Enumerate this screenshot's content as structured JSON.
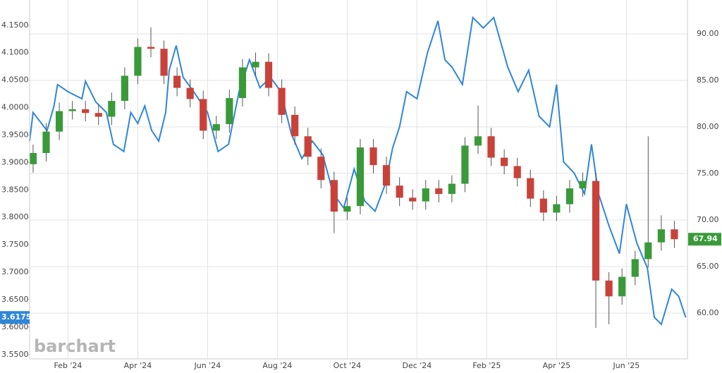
{
  "chart_data": {
    "type": "combo",
    "watermark": "barchart",
    "grid": true,
    "xlim": [
      -0.1,
      18.75
    ],
    "xticks": [
      {
        "value": 1,
        "label": "Feb '24"
      },
      {
        "value": 3,
        "label": "Apr '24"
      },
      {
        "value": 5,
        "label": "Jun '24"
      },
      {
        "value": 7,
        "label": "Aug '24"
      },
      {
        "value": 9,
        "label": "Oct '24"
      },
      {
        "value": 11,
        "label": "Dec '24"
      },
      {
        "value": 13,
        "label": "Feb '25"
      },
      {
        "value": 15,
        "label": "Apr '25"
      },
      {
        "value": 17,
        "label": "Jun '25"
      }
    ],
    "ylim": [
      3.542,
      4.196
    ],
    "yticks": [
      {
        "value": 4.15,
        "label": "4.1500"
      },
      {
        "value": 4.1,
        "label": "4.1000"
      },
      {
        "value": 4.05,
        "label": "4.0500"
      },
      {
        "value": 4.0,
        "label": "4.0000"
      },
      {
        "value": 3.95,
        "label": "3.9500"
      },
      {
        "value": 3.9,
        "label": "3.9000"
      },
      {
        "value": 3.85,
        "label": "3.8500"
      },
      {
        "value": 3.8,
        "label": "3.8000"
      },
      {
        "value": 3.75,
        "label": "3.7500"
      },
      {
        "value": 3.7,
        "label": "3.7000"
      },
      {
        "value": 3.65,
        "label": "3.6500"
      },
      {
        "value": 3.6,
        "label": "3.6000"
      },
      {
        "value": 3.55,
        "label": "3.5500"
      }
    ],
    "y2lim": [
      55.08,
      93.64
    ],
    "y2ticks": [
      {
        "value": 90,
        "label": "90.00"
      },
      {
        "value": 85,
        "label": "85.00"
      },
      {
        "value": 80,
        "label": "80.00"
      },
      {
        "value": 75,
        "label": "75.00"
      },
      {
        "value": 70,
        "label": "70.00"
      },
      {
        "value": 65,
        "label": "65.00"
      },
      {
        "value": 60,
        "label": "60.00"
      }
    ],
    "series": [
      {
        "type": "line",
        "color": "#2f86d8",
        "x": [
          -0.1,
          0,
          0.4,
          0.6,
          0.7,
          1.0,
          1.4,
          1.5,
          1.8,
          2.1,
          2.3,
          2.6,
          2.8,
          3.0,
          3.2,
          3.4,
          3.6,
          3.8,
          3.9,
          4.1,
          4.3,
          4.6,
          5.0,
          5.3,
          5.6,
          5.9,
          6.2,
          6.5,
          6.8,
          7.1,
          7.4,
          7.7,
          8.0,
          8.3,
          8.6,
          8.9,
          9.2,
          9.5,
          9.8,
          10.1,
          10.3,
          10.5,
          10.7,
          11.0,
          11.3,
          11.6,
          11.8,
          12.0,
          12.3,
          12.6,
          12.9,
          13.2,
          13.6,
          13.9,
          14.2,
          14.5,
          14.8,
          15.0,
          15.2,
          15.5,
          15.8,
          16.0,
          16.2,
          16.5,
          16.8,
          17.0,
          17.3,
          17.6,
          17.8,
          18.0,
          18.3,
          18.5,
          18.7
        ],
        "values": [
          3.939,
          3.991,
          3.958,
          4.003,
          4.042,
          4.029,
          4.016,
          4.048,
          4.01,
          3.991,
          3.933,
          3.92,
          3.991,
          3.971,
          4.003,
          3.958,
          3.939,
          3.991,
          4.068,
          4.113,
          4.055,
          4.029,
          3.991,
          3.92,
          3.933,
          4.029,
          4.087,
          4.036,
          4.055,
          4.029,
          3.952,
          3.907,
          3.939,
          3.914,
          3.843,
          3.817,
          3.888,
          3.83,
          3.811,
          3.862,
          3.926,
          3.965,
          4.029,
          4.016,
          4.1,
          4.158,
          4.087,
          4.074,
          4.042,
          4.164,
          4.145,
          4.164,
          4.074,
          4.029,
          4.068,
          3.984,
          3.965,
          4.042,
          3.901,
          3.881,
          3.843,
          3.933,
          3.843,
          3.785,
          3.734,
          3.824,
          3.753,
          3.708,
          3.618,
          3.605,
          3.669,
          3.656,
          3.6175
        ],
        "last_label": "3.6175"
      },
      {
        "type": "candlestick",
        "axis": "y2",
        "up_color": "#3a9a3a",
        "down_color": "#c8423a",
        "wick_color": "#555555",
        "x": [
          0,
          0.375,
          0.75,
          1.125,
          1.5,
          1.875,
          2.25,
          2.625,
          3.0,
          3.375,
          3.75,
          4.125,
          4.5,
          4.875,
          5.25,
          5.625,
          6.0,
          6.375,
          6.75,
          7.125,
          7.5,
          7.875,
          8.25,
          8.625,
          9.0,
          9.375,
          9.75,
          10.125,
          10.5,
          10.875,
          11.25,
          11.625,
          12.0,
          12.375,
          12.75,
          13.125,
          13.5,
          13.875,
          14.25,
          14.625,
          15.0,
          15.375,
          15.75,
          16.125,
          16.5,
          16.875,
          17.25,
          17.625,
          18.0,
          18.375
        ],
        "open": [
          76.0,
          77.2,
          79.5,
          81.7,
          81.9,
          81.5,
          81.1,
          82.8,
          85.5,
          88.6,
          88.4,
          85.5,
          84.2,
          83,
          79.6,
          80.3,
          83.1,
          86.4,
          87.0,
          84.2,
          81.3,
          79,
          76.8,
          74.3,
          70.9,
          71.5,
          77.8,
          75.9,
          73.7,
          72.4,
          72.0,
          73.4,
          72.8,
          73.9,
          78,
          79,
          76.7,
          75.8,
          74.5,
          72.3,
          70.8,
          71.7,
          73.4,
          74.2,
          63.5,
          61.8,
          63.9,
          65.8,
          67.6,
          69
        ],
        "high": [
          78.1,
          80.4,
          82.6,
          82.8,
          82.8,
          82.4,
          83.7,
          86.4,
          89.5,
          90.7,
          89.3,
          86.4,
          85.1,
          83.9,
          81.2,
          84.0,
          87.3,
          88.0,
          87.9,
          85.1,
          82.2,
          79.9,
          77.7,
          75.2,
          72.4,
          78.7,
          78.7,
          76.8,
          74.6,
          73.3,
          74.3,
          74.3,
          74.8,
          78.9,
          82.3,
          79.9,
          77.6,
          76.7,
          75.4,
          73.2,
          72.6,
          74.3,
          75.1,
          75.1,
          64.4,
          64.8,
          66.7,
          79.0,
          70.5,
          69.9
        ],
        "low": [
          75.1,
          76.3,
          78.6,
          80.8,
          80.6,
          80.2,
          80.2,
          81.9,
          84.6,
          87.5,
          84.6,
          83.3,
          82.1,
          78.7,
          78.7,
          79.4,
          82.2,
          85.5,
          83.3,
          80.4,
          78.1,
          75.9,
          73.4,
          68.6,
          70.0,
          70.6,
          75.0,
          72.8,
          71.5,
          71.1,
          71.1,
          71.9,
          71.9,
          73.0,
          77.1,
          75.8,
          74.9,
          73.6,
          71.4,
          69.9,
          69.9,
          70.8,
          72.5,
          58.4,
          58.8,
          60.9,
          63.0,
          64.9,
          66.7,
          67.0
        ],
        "close": [
          77.2,
          79.5,
          81.7,
          81.9,
          81.5,
          81.1,
          82.8,
          85.5,
          88.6,
          88.4,
          85.5,
          84.2,
          83,
          79.6,
          80.3,
          83.1,
          86.4,
          87.0,
          84.2,
          81.3,
          79,
          76.8,
          74.3,
          70.9,
          71.5,
          77.8,
          75.9,
          73.7,
          72.4,
          72.0,
          73.4,
          72.8,
          73.9,
          78,
          79,
          76.7,
          75.8,
          74.5,
          72.3,
          70.8,
          71.7,
          73.4,
          74.2,
          63.5,
          61.8,
          63.9,
          65.8,
          67.6,
          69,
          67.94
        ],
        "last_label": "67.94"
      }
    ]
  }
}
